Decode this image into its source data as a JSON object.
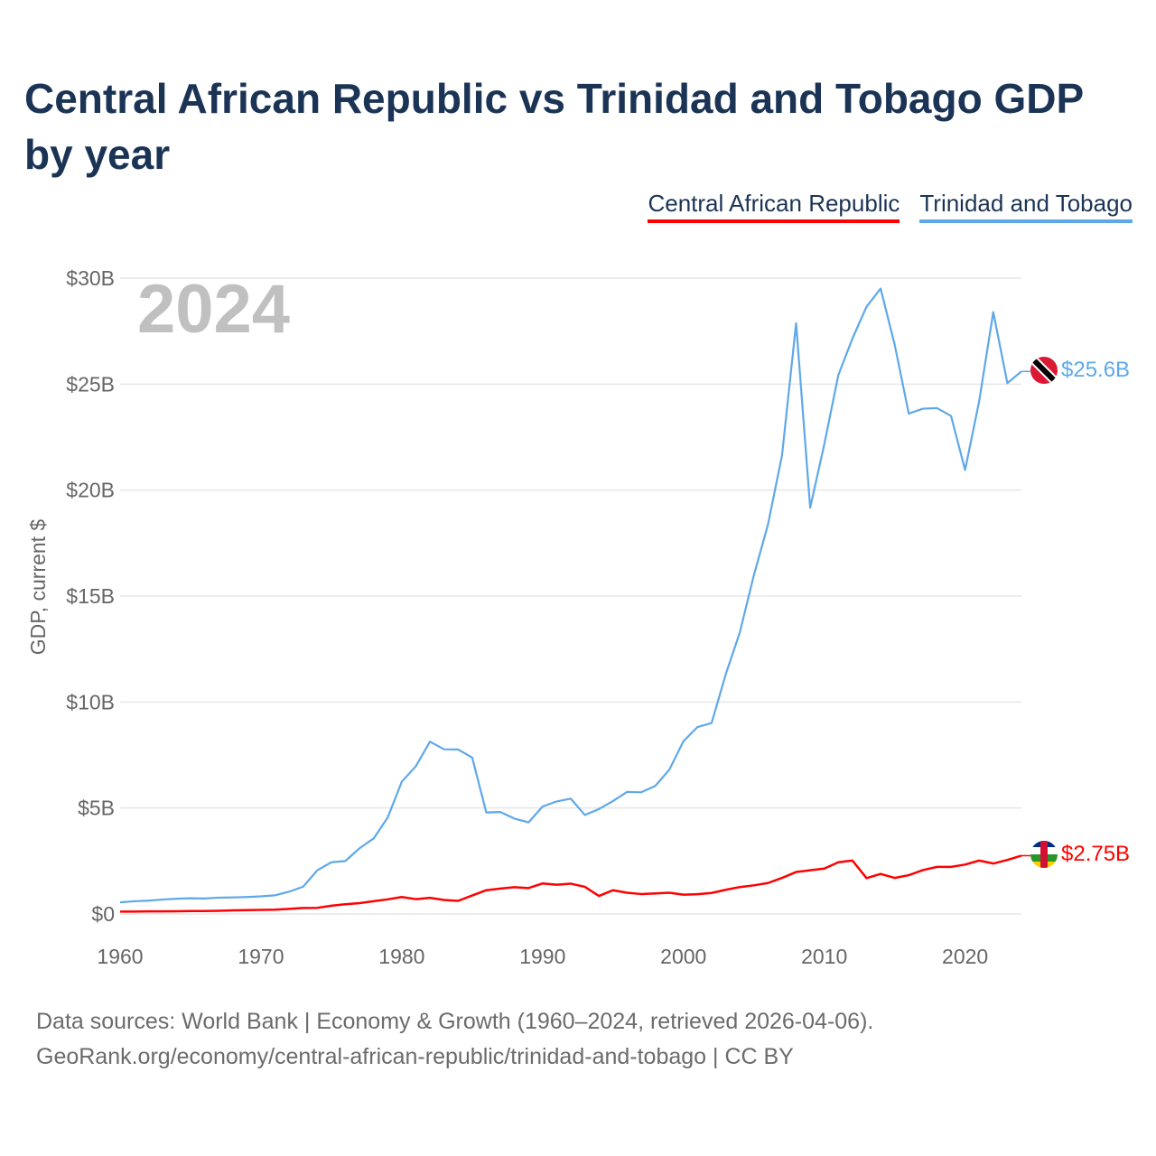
{
  "title": "Central African Republic vs Trinidad and Tobago GDP by year",
  "legend": [
    {
      "label": "Central African Republic",
      "color": "#ff0000"
    },
    {
      "label": "Trinidad and Tobago",
      "color": "#5ea8ea"
    }
  ],
  "year_watermark": "2024",
  "footer": {
    "line1": "Data sources: World Bank | Economy & Growth (1960–2024, retrieved 2026-04-06).",
    "line2": "GeoRank.org/economy/central-african-republic/trinidad-and-tobago | CC BY"
  },
  "chart_data": {
    "type": "line",
    "title": "Central African Republic vs Trinidad and Tobago GDP by year",
    "xlabel": "",
    "ylabel": "GDP, current $",
    "xlim": [
      1960,
      2024
    ],
    "ylim": [
      0,
      30
    ],
    "x_ticks": [
      1960,
      1970,
      1980,
      1990,
      2000,
      2010,
      2020
    ],
    "x_tick_labels": [
      "1960",
      "1970",
      "1980",
      "1990",
      "2000",
      "2010",
      "2020"
    ],
    "y_ticks": [
      0,
      5,
      10,
      15,
      20,
      25,
      30
    ],
    "y_tick_labels": [
      "$0",
      "$5B",
      "$10B",
      "$15B",
      "$20B",
      "$25B",
      "$30B"
    ],
    "grid": true,
    "legend_position": "top-right",
    "x_start": 1960,
    "series": [
      {
        "name": "Central African Republic",
        "color": "#ff0000",
        "end_label": "$2.75B",
        "values": [
          0.11,
          0.11,
          0.12,
          0.12,
          0.13,
          0.14,
          0.14,
          0.15,
          0.17,
          0.18,
          0.19,
          0.2,
          0.24,
          0.28,
          0.29,
          0.39,
          0.46,
          0.51,
          0.6,
          0.69,
          0.8,
          0.7,
          0.76,
          0.66,
          0.62,
          0.87,
          1.12,
          1.2,
          1.26,
          1.22,
          1.44,
          1.38,
          1.43,
          1.28,
          0.85,
          1.12,
          1.0,
          0.94,
          0.97,
          1.0,
          0.91,
          0.93,
          0.99,
          1.14,
          1.27,
          1.35,
          1.46,
          1.7,
          1.98,
          2.06,
          2.14,
          2.44,
          2.52,
          1.69,
          1.89,
          1.7,
          1.83,
          2.07,
          2.22,
          2.22,
          2.33,
          2.52,
          2.38,
          2.55,
          2.75
        ]
      },
      {
        "name": "Trinidad and Tobago",
        "color": "#5ea8ea",
        "end_label": "$25.6B",
        "values": [
          0.55,
          0.6,
          0.63,
          0.68,
          0.72,
          0.74,
          0.73,
          0.77,
          0.78,
          0.8,
          0.83,
          0.88,
          1.05,
          1.29,
          2.06,
          2.44,
          2.5,
          3.1,
          3.56,
          4.55,
          6.24,
          6.97,
          8.13,
          7.77,
          7.76,
          7.38,
          4.79,
          4.81,
          4.5,
          4.32,
          5.07,
          5.31,
          5.44,
          4.67,
          4.95,
          5.33,
          5.76,
          5.74,
          6.04,
          6.81,
          8.15,
          8.82,
          9.01,
          11.3,
          13.28,
          15.98,
          18.37,
          21.64,
          27.87,
          19.17,
          22.16,
          25.43,
          27.15,
          28.65,
          29.51,
          26.86,
          23.61,
          23.84,
          23.87,
          23.5,
          20.95,
          24.2,
          28.4,
          25.05,
          25.6
        ]
      }
    ]
  }
}
